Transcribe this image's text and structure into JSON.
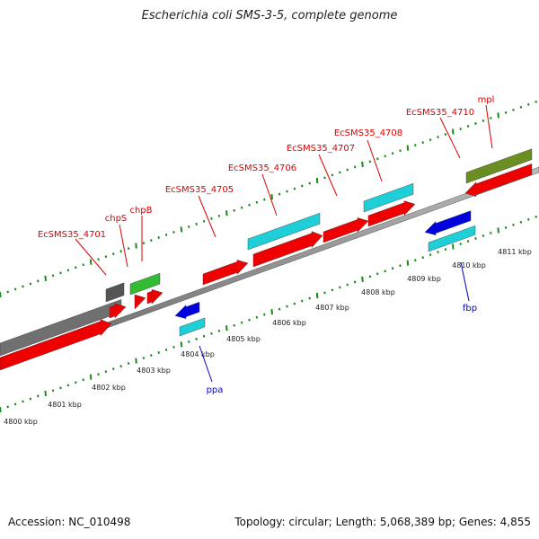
{
  "title": "Escherichia coli SMS-3-5, complete genome",
  "footer": {
    "accession": "Accession: NC_010498",
    "summary": "Topology: circular; Length: 5,068,389 bp; Genes: 4,855"
  },
  "scale_labels": [
    "4800 kbp",
    "4801 kbp",
    "4802 kbp",
    "4803 kbp",
    "4804 kbp",
    "4805 kbp",
    "4806 kbp",
    "4807 kbp",
    "4808 kbp",
    "4809 kbp",
    "4810 kbp",
    "4811 kbp"
  ],
  "gene_labels": {
    "top": [
      "EcSMS35_4701",
      "chpS",
      "chpB",
      "EcSMS35_4705",
      "EcSMS35_4706",
      "EcSMS35_4707",
      "EcSMS35_4708",
      "EcSMS35_4710",
      "mpl"
    ],
    "bottom": [
      "ppa",
      "fbp"
    ]
  },
  "colors": {
    "label_top": "#dd0000",
    "label_bottom": "#0000cc",
    "gene_red": "#ee0000",
    "gene_cyan": "#1ecfd8",
    "gene_blue": "#0000dd",
    "gene_green": "#33bb33",
    "gene_olive": "#6b8e23",
    "gene_gray": "#707070",
    "backbone": "#888888",
    "ticks": "#1a8a1a"
  }
}
